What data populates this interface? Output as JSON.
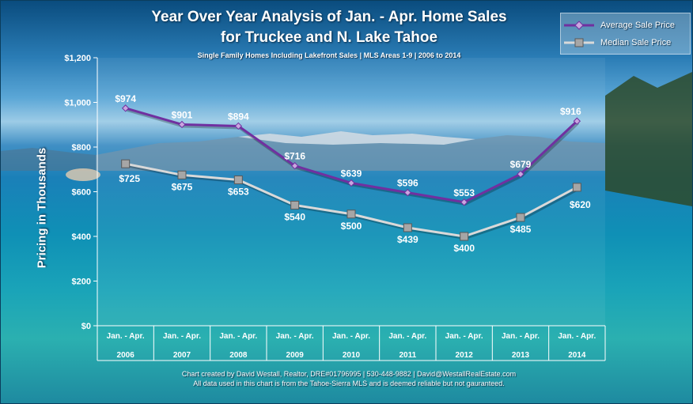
{
  "chart_data": {
    "type": "line",
    "title": "Year Over Year Analysis of Jan. - Apr. Home Sales",
    "title_line2": "for Truckee and N. Lake Tahoe",
    "subtitle": "Single Family Homes Including Lakefront Sales | MLS Areas 1-9 | 2006 to 2014",
    "ylabel": "Pricing in Thousands",
    "ylim": [
      0,
      1200
    ],
    "yticks": [
      "$0",
      "$200",
      "$400",
      "$600",
      "$800",
      "$1,000",
      "$1,200"
    ],
    "ytick_values": [
      0,
      200,
      400,
      600,
      800,
      1000,
      1200
    ],
    "categories": [
      [
        "Jan. - Apr.",
        "2006"
      ],
      [
        "Jan. - Apr.",
        "2007"
      ],
      [
        "Jan. - Apr.",
        "2008"
      ],
      [
        "Jan. - Apr.",
        "2009"
      ],
      [
        "Jan. - Apr.",
        "2010"
      ],
      [
        "Jan. - Apr.",
        "2011"
      ],
      [
        "Jan. - Apr.",
        "2012"
      ],
      [
        "Jan. - Apr.",
        "2013"
      ],
      [
        "Jan. - Apr.",
        "2014"
      ]
    ],
    "series": [
      {
        "name": "Average Sale Price",
        "color": "#7030a0",
        "marker": "diamond",
        "values": [
          974,
          901,
          894,
          716,
          639,
          596,
          553,
          679,
          916
        ],
        "labels": [
          "$974",
          "$901",
          "$894",
          "$716",
          "$639",
          "$596",
          "$553",
          "$679",
          "$916"
        ]
      },
      {
        "name": "Median Sale Price",
        "color": "#d9d9d9",
        "marker": "square",
        "values": [
          725,
          675,
          653,
          540,
          500,
          439,
          400,
          485,
          620
        ],
        "labels": [
          "$725",
          "$675",
          "$653",
          "$540",
          "$500",
          "$439",
          "$400",
          "$485",
          "$620"
        ]
      }
    ],
    "legend_position": "top-right",
    "grid": false
  },
  "footer": {
    "line1": "Chart created by David Westall, Realtor, DRE#01796995 | 530-448-9882 | David@WestallRealEstate.com",
    "line2": "All data used in this chart is from the Tahoe-Sierra MLS and is deemed reliable but  not gauranteed."
  }
}
